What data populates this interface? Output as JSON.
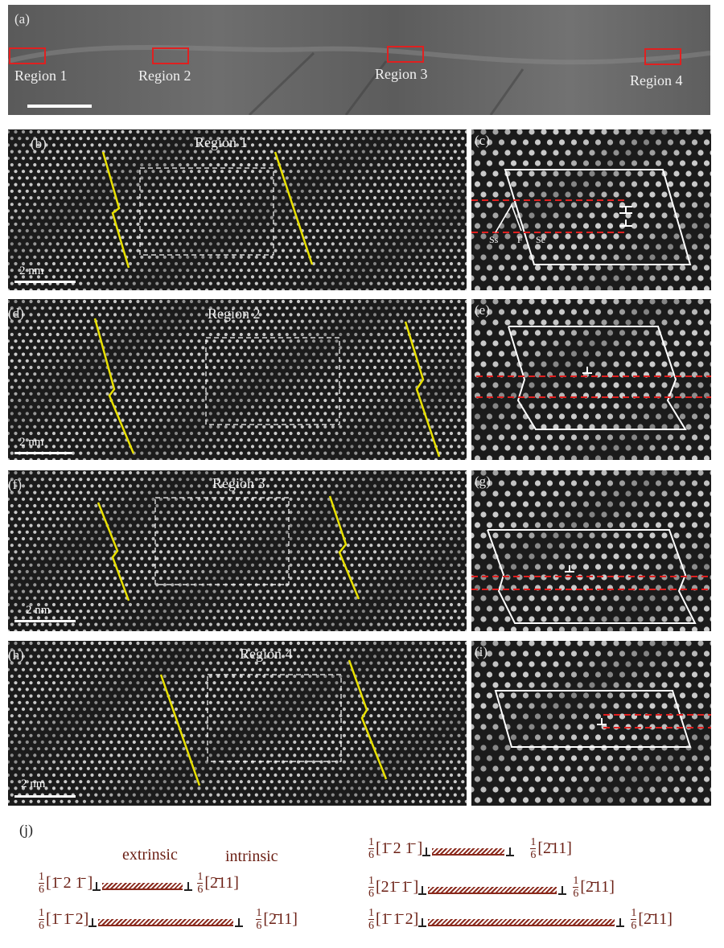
{
  "panel_a": {
    "label": "(a)",
    "regions": [
      "Region 1",
      "Region 2",
      "Region 3",
      "Region 4"
    ]
  },
  "panels": [
    {
      "label": "(b)",
      "title": "Region 1",
      "scale": "2 nm"
    },
    {
      "label": "(d)",
      "title": "Region 2",
      "scale": "2 nm"
    },
    {
      "label": "(f)",
      "title": "Region 3",
      "scale": "2 nm"
    },
    {
      "label": "(h)",
      "title": "Region 4",
      "scale": "2 nm"
    }
  ],
  "side_panels": [
    {
      "label": "(c)",
      "annotations": [
        "Ss",
        "F",
        "Se"
      ]
    },
    {
      "label": "(e)"
    },
    {
      "label": "(g)"
    },
    {
      "label": "(i)"
    }
  ],
  "panel_j": {
    "label": "(j)",
    "extrinsic": "extrinsic",
    "intrinsic": "intrinsic",
    "fraction_num": "1",
    "fraction_den": "6",
    "left_rows": [
      {
        "left": "[1̄ 2 1̄ ]",
        "right": "[2̄11]"
      },
      {
        "left": "[1̄ 1̄ 2]",
        "right": "[2̄11]"
      }
    ],
    "right_rows": [
      {
        "left": "[1̄ 2 1̄ ]",
        "right": "[2̄11]"
      },
      {
        "left": "[21̄ 1̄ ]",
        "right": "[2̄11]"
      },
      {
        "left": "[1̄ 1̄ 2]",
        "right": "[2̄11]"
      }
    ]
  },
  "colors": {
    "marker_red": "#e02020",
    "boundary_yellow": "#e8e000",
    "text_brown": "#6b1f14"
  }
}
